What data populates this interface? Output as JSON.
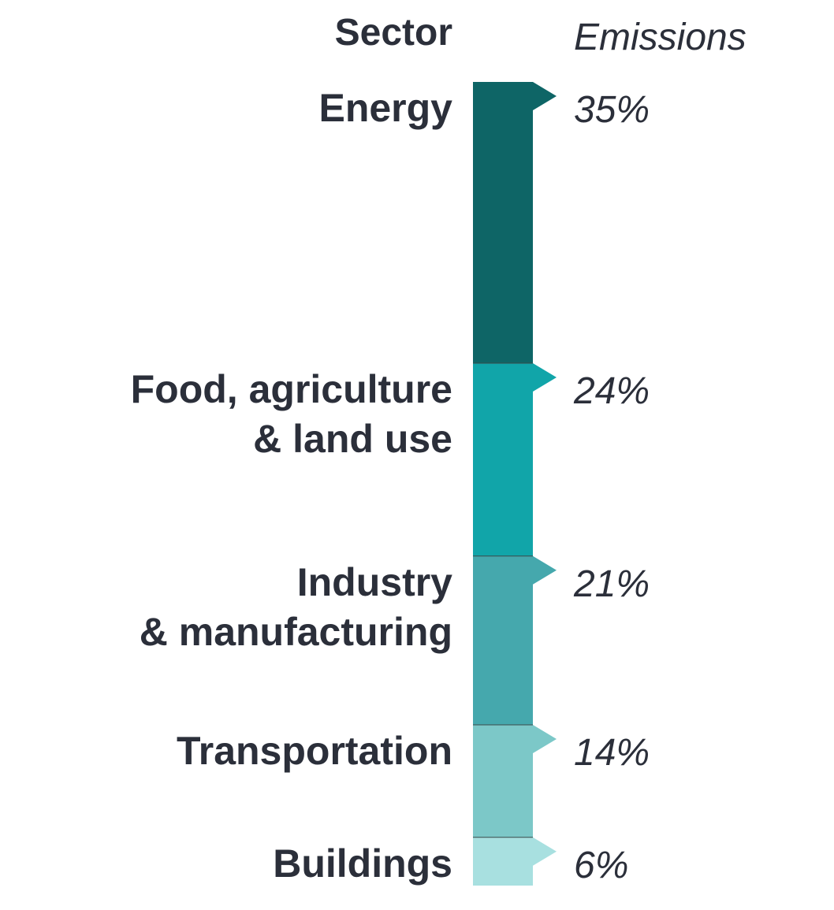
{
  "chart_data": {
    "type": "bar",
    "headers": {
      "category": "Sector",
      "value": "Emissions"
    },
    "categories": [
      "Energy",
      "Food, agriculture & land use",
      "Industry & manufacturing",
      "Transportation",
      "Buildings"
    ],
    "label_lines": [
      [
        "Energy"
      ],
      [
        "Food, agriculture",
        "& land use"
      ],
      [
        "Industry",
        "& manufacturing"
      ],
      [
        "Transportation"
      ],
      [
        "Buildings"
      ]
    ],
    "values": [
      35,
      24,
      21,
      14,
      6
    ],
    "value_labels": [
      "35%",
      "24%",
      "21%",
      "14%",
      "6%"
    ],
    "unit": "%",
    "colors": [
      "#0e6566",
      "#11a5a9",
      "#45a8ad",
      "#7cc8c8",
      "#a8e0e0"
    ]
  }
}
